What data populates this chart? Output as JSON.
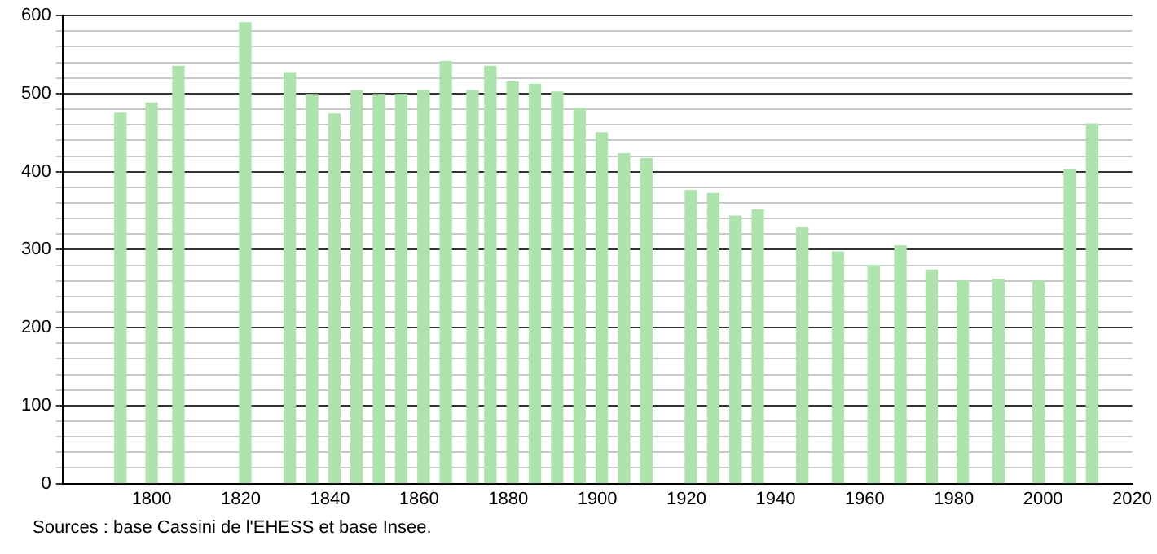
{
  "chart_data": {
    "type": "bar",
    "x": [
      1793,
      1800,
      1806,
      1821,
      1831,
      1836,
      1841,
      1846,
      1851,
      1856,
      1861,
      1866,
      1872,
      1876,
      1881,
      1886,
      1891,
      1896,
      1901,
      1906,
      1911,
      1921,
      1926,
      1931,
      1936,
      1946,
      1954,
      1962,
      1968,
      1975,
      1982,
      1990,
      1999,
      2006,
      2011
    ],
    "values": [
      475,
      488,
      535,
      591,
      527,
      499,
      474,
      504,
      499,
      499,
      504,
      541,
      504,
      535,
      515,
      512,
      502,
      481,
      450,
      423,
      417,
      376,
      372,
      343,
      351,
      328,
      297,
      280,
      305,
      274,
      260,
      262,
      260,
      403,
      461
    ],
    "color": "#aee3ae",
    "xlim": [
      1780,
      2020
    ],
    "xticks": [
      1800,
      1820,
      1840,
      1860,
      1880,
      1900,
      1920,
      1940,
      1960,
      1980,
      2000,
      2020
    ],
    "ylim": [
      0,
      600
    ],
    "yticks": [
      0,
      {
        "value": 20,
        "label": null
      },
      {
        "value": 40,
        "label": null
      },
      {
        "value": 60,
        "label": null
      },
      {
        "value": 80,
        "label": null
      },
      100,
      {
        "value": 120,
        "label": null
      },
      {
        "value": 140,
        "label": null
      },
      {
        "value": 160,
        "label": null
      },
      {
        "value": 180,
        "label": null
      },
      200,
      {
        "value": 220,
        "label": null
      },
      {
        "value": 240,
        "label": null
      },
      {
        "value": 260,
        "label": null
      },
      {
        "value": 280,
        "label": null
      },
      300,
      {
        "value": 320,
        "label": null
      },
      {
        "value": 340,
        "label": null
      },
      {
        "value": 360,
        "label": null
      },
      {
        "value": 380,
        "label": null
      },
      400,
      {
        "value": 420,
        "label": null
      },
      {
        "value": 440,
        "label": null
      },
      {
        "value": 460,
        "label": null
      },
      {
        "value": 480,
        "label": null
      },
      500,
      {
        "value": 520,
        "label": null
      },
      {
        "value": 540,
        "label": null
      },
      {
        "value": 560,
        "label": null
      },
      {
        "value": 580,
        "label": null
      },
      600
    ],
    "grid": "y",
    "annotations": [
      "Sources : base Cassini de l'EHESS et base Insee."
    ]
  }
}
